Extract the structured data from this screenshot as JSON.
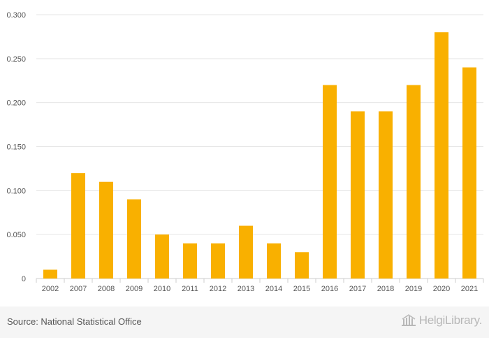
{
  "chart_data": {
    "type": "bar",
    "categories": [
      "2002",
      "2007",
      "2008",
      "2009",
      "2010",
      "2011",
      "2012",
      "2013",
      "2014",
      "2015",
      "2016",
      "2017",
      "2018",
      "2019",
      "2020",
      "2021"
    ],
    "values": [
      0.01,
      0.12,
      0.11,
      0.09,
      0.05,
      0.04,
      0.04,
      0.06,
      0.04,
      0.03,
      0.22,
      0.19,
      0.19,
      0.22,
      0.28,
      0.24
    ],
    "ylim": [
      0,
      0.3
    ],
    "yticks": [
      0,
      0.05,
      0.1,
      0.15,
      0.2,
      0.25,
      0.3
    ],
    "ytick_labels": [
      "0",
      "0.050",
      "0.100",
      "0.150",
      "0.200",
      "0.250",
      "0.300"
    ],
    "title": "",
    "xlabel": "",
    "ylabel": "",
    "bar_color": "#f9b000",
    "grid_color": "#e6e6e6"
  },
  "footer": {
    "source": "Source: National Statistical Office",
    "logo_text": "HelgiLibrary."
  }
}
